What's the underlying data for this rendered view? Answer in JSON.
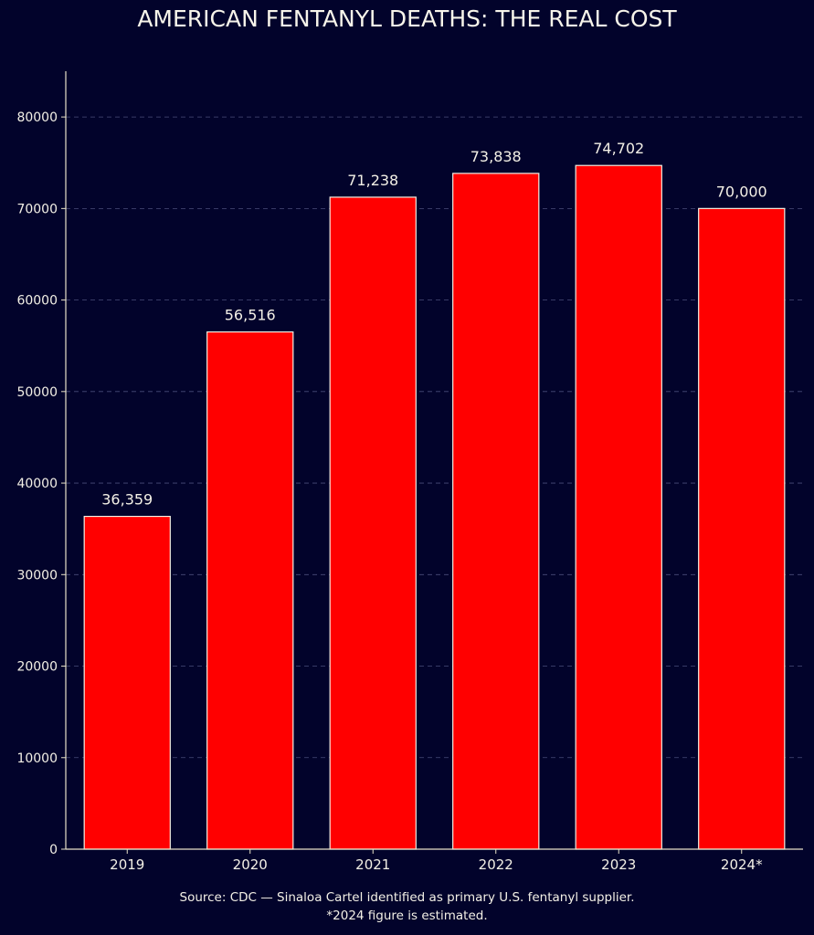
{
  "chart_data": {
    "type": "bar",
    "title": "AMERICAN FENTANYL DEATHS: THE REAL COST",
    "xlabel": "",
    "ylabel": "",
    "categories": [
      "2019",
      "2020",
      "2021",
      "2022",
      "2023",
      "2024*"
    ],
    "values": [
      36359,
      56516,
      71238,
      73838,
      74702,
      70000
    ],
    "value_labels": [
      "36,359",
      "56,516",
      "71,238",
      "73,838",
      "74,702",
      "70,000"
    ],
    "yticks": [
      0,
      10000,
      20000,
      30000,
      40000,
      50000,
      60000,
      70000,
      80000
    ],
    "ytick_labels": [
      "0",
      "10000",
      "20000",
      "30000",
      "40000",
      "50000",
      "60000",
      "70000",
      "80000"
    ],
    "ylim": [
      0,
      85000
    ],
    "grid": "horizontal dashed",
    "legend": "none",
    "colors": {
      "background": "#02032b",
      "bar_fill": "#ff0000",
      "bar_edge": "#f3efe3",
      "text": "#f3f0e6",
      "axis": "#e8e2c8",
      "grid": "#4a4d7a"
    }
  },
  "captions": {
    "source": "Source: CDC — Sinaloa Cartel identified as primary U.S. fentanyl supplier.",
    "note": "*2024 figure is estimated."
  }
}
